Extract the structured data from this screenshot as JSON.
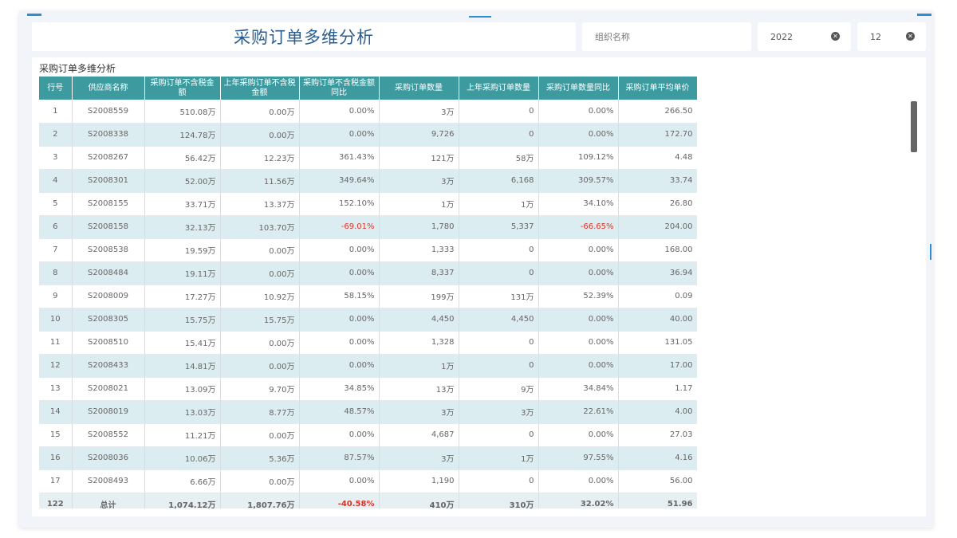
{
  "header": {
    "title": "采购订单多维分析"
  },
  "filters": {
    "org": {
      "placeholder": "组织名称"
    },
    "year": {
      "value": "2022",
      "clear": "✕"
    },
    "month": {
      "value": "12",
      "clear": "✕"
    }
  },
  "panel": {
    "title": "采购订单多维分析"
  },
  "table": {
    "columns": [
      "行号",
      "供应商名称",
      "采购订单不含税金额",
      "上年采购订单不含税金额",
      "采购订单不含税金额同比",
      "采购订单数量",
      "上年采购订单数量",
      "采购订单数量同比",
      "采购订单平均单价"
    ],
    "rows": [
      [
        "1",
        "S2008559",
        "510.08万",
        "0.00万",
        "0.00%",
        "3万",
        "0",
        "0.00%",
        "266.50"
      ],
      [
        "2",
        "S2008338",
        "124.78万",
        "0.00万",
        "0.00%",
        "9,726",
        "0",
        "0.00%",
        "172.70"
      ],
      [
        "3",
        "S2008267",
        "56.42万",
        "12.23万",
        "361.43%",
        "121万",
        "58万",
        "109.12%",
        "4.48"
      ],
      [
        "4",
        "S2008301",
        "52.00万",
        "11.56万",
        "349.64%",
        "3万",
        "6,168",
        "309.57%",
        "33.74"
      ],
      [
        "5",
        "S2008155",
        "33.71万",
        "13.37万",
        "152.10%",
        "1万",
        "1万",
        "34.10%",
        "26.80"
      ],
      [
        "6",
        "S2008158",
        "32.13万",
        "103.70万",
        "-69.01%",
        "1,780",
        "5,337",
        "-66.65%",
        "204.00"
      ],
      [
        "7",
        "S2008538",
        "19.59万",
        "0.00万",
        "0.00%",
        "1,333",
        "0",
        "0.00%",
        "168.00"
      ],
      [
        "8",
        "S2008484",
        "19.11万",
        "0.00万",
        "0.00%",
        "8,337",
        "0",
        "0.00%",
        "36.94"
      ],
      [
        "9",
        "S2008009",
        "17.27万",
        "10.92万",
        "58.15%",
        "199万",
        "131万",
        "52.39%",
        "0.09"
      ],
      [
        "10",
        "S2008305",
        "15.75万",
        "15.75万",
        "0.00%",
        "4,450",
        "4,450",
        "0.00%",
        "40.00"
      ],
      [
        "11",
        "S2008510",
        "15.41万",
        "0.00万",
        "0.00%",
        "1,328",
        "0",
        "0.00%",
        "131.05"
      ],
      [
        "12",
        "S2008433",
        "14.81万",
        "0.00万",
        "0.00%",
        "1万",
        "0",
        "0.00%",
        "17.00"
      ],
      [
        "13",
        "S2008021",
        "13.09万",
        "9.70万",
        "34.85%",
        "13万",
        "9万",
        "34.84%",
        "1.17"
      ],
      [
        "14",
        "S2008019",
        "13.03万",
        "8.77万",
        "48.57%",
        "3万",
        "3万",
        "22.61%",
        "4.00"
      ],
      [
        "15",
        "S2008552",
        "11.21万",
        "0.00万",
        "0.00%",
        "4,687",
        "0",
        "0.00%",
        "27.03"
      ],
      [
        "16",
        "S2008036",
        "10.06万",
        "5.36万",
        "87.57%",
        "3万",
        "1万",
        "97.55%",
        "4.16"
      ],
      [
        "17",
        "S2008493",
        "6.66万",
        "0.00万",
        "0.00%",
        "1,190",
        "0",
        "0.00%",
        "56.00"
      ]
    ],
    "total": [
      "122",
      "总计",
      "1,074.12万",
      "1,807.76万",
      "-40.58%",
      "410万",
      "310万",
      "32.02%",
      "51.96"
    ],
    "negative_color": "#d9342b",
    "header_color": "#3d9ba0",
    "stripe_color": "#dcedf1"
  }
}
